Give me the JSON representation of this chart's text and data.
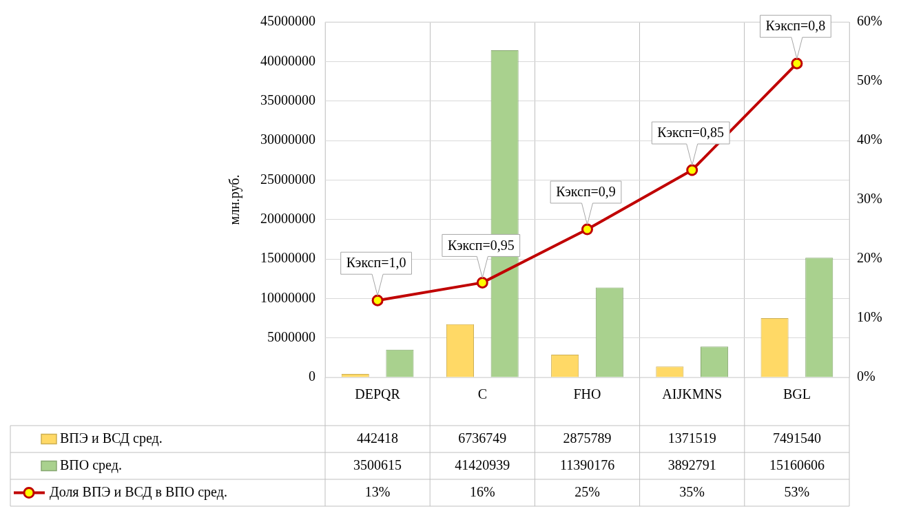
{
  "chart_data": {
    "type": "bar",
    "ylabel": "млн.руб.",
    "categories": [
      "DEPQR",
      "C",
      "FHO",
      "AIJKMNS",
      "BGL"
    ],
    "series": [
      {
        "name": "ВПЭ и ВСД сред.",
        "color": "#ffd966",
        "values": [
          442418,
          6736749,
          2875789,
          1371519,
          7491540
        ],
        "value_labels": [
          "442418",
          "6736749",
          "2875789",
          "1371519",
          "7491540"
        ]
      },
      {
        "name": "ВПО сред.",
        "color": "#a9d18e",
        "values": [
          3500615,
          41420939,
          11390176,
          3892791,
          15160606
        ],
        "value_labels": [
          "3500615",
          "41420939",
          "11390176",
          "3892791",
          "15160606"
        ]
      },
      {
        "name": "Доля ВПЭ и ВСД в ВПО сред.",
        "type": "line",
        "axis": "y2",
        "color": "#c00000",
        "marker": "circle",
        "line_style": "solid",
        "values": [
          13,
          16,
          25,
          35,
          53
        ],
        "value_labels": [
          "13%",
          "16%",
          "25%",
          "35%",
          "53%"
        ]
      }
    ],
    "ylim": [
      0,
      45000000
    ],
    "yticks": [
      0,
      5000000,
      10000000,
      15000000,
      20000000,
      25000000,
      30000000,
      35000000,
      40000000,
      45000000
    ],
    "y2lim": [
      0,
      60
    ],
    "y2ticks": [
      {
        "value": 0,
        "label": "0%"
      },
      {
        "value": 10,
        "label": "10%"
      },
      {
        "value": 20,
        "label": "20%"
      },
      {
        "value": 30,
        "label": "30%"
      },
      {
        "value": 40,
        "label": "40%"
      },
      {
        "value": 50,
        "label": "50%"
      },
      {
        "value": 60,
        "label": "60%"
      }
    ],
    "annotations": [
      "Кэксп=1,0",
      "Кэксп=0,95",
      "Кэксп=0,9",
      "Кэксп=0,85",
      "Кэксп=0,8"
    ],
    "grid": true,
    "legend": "bottom"
  }
}
